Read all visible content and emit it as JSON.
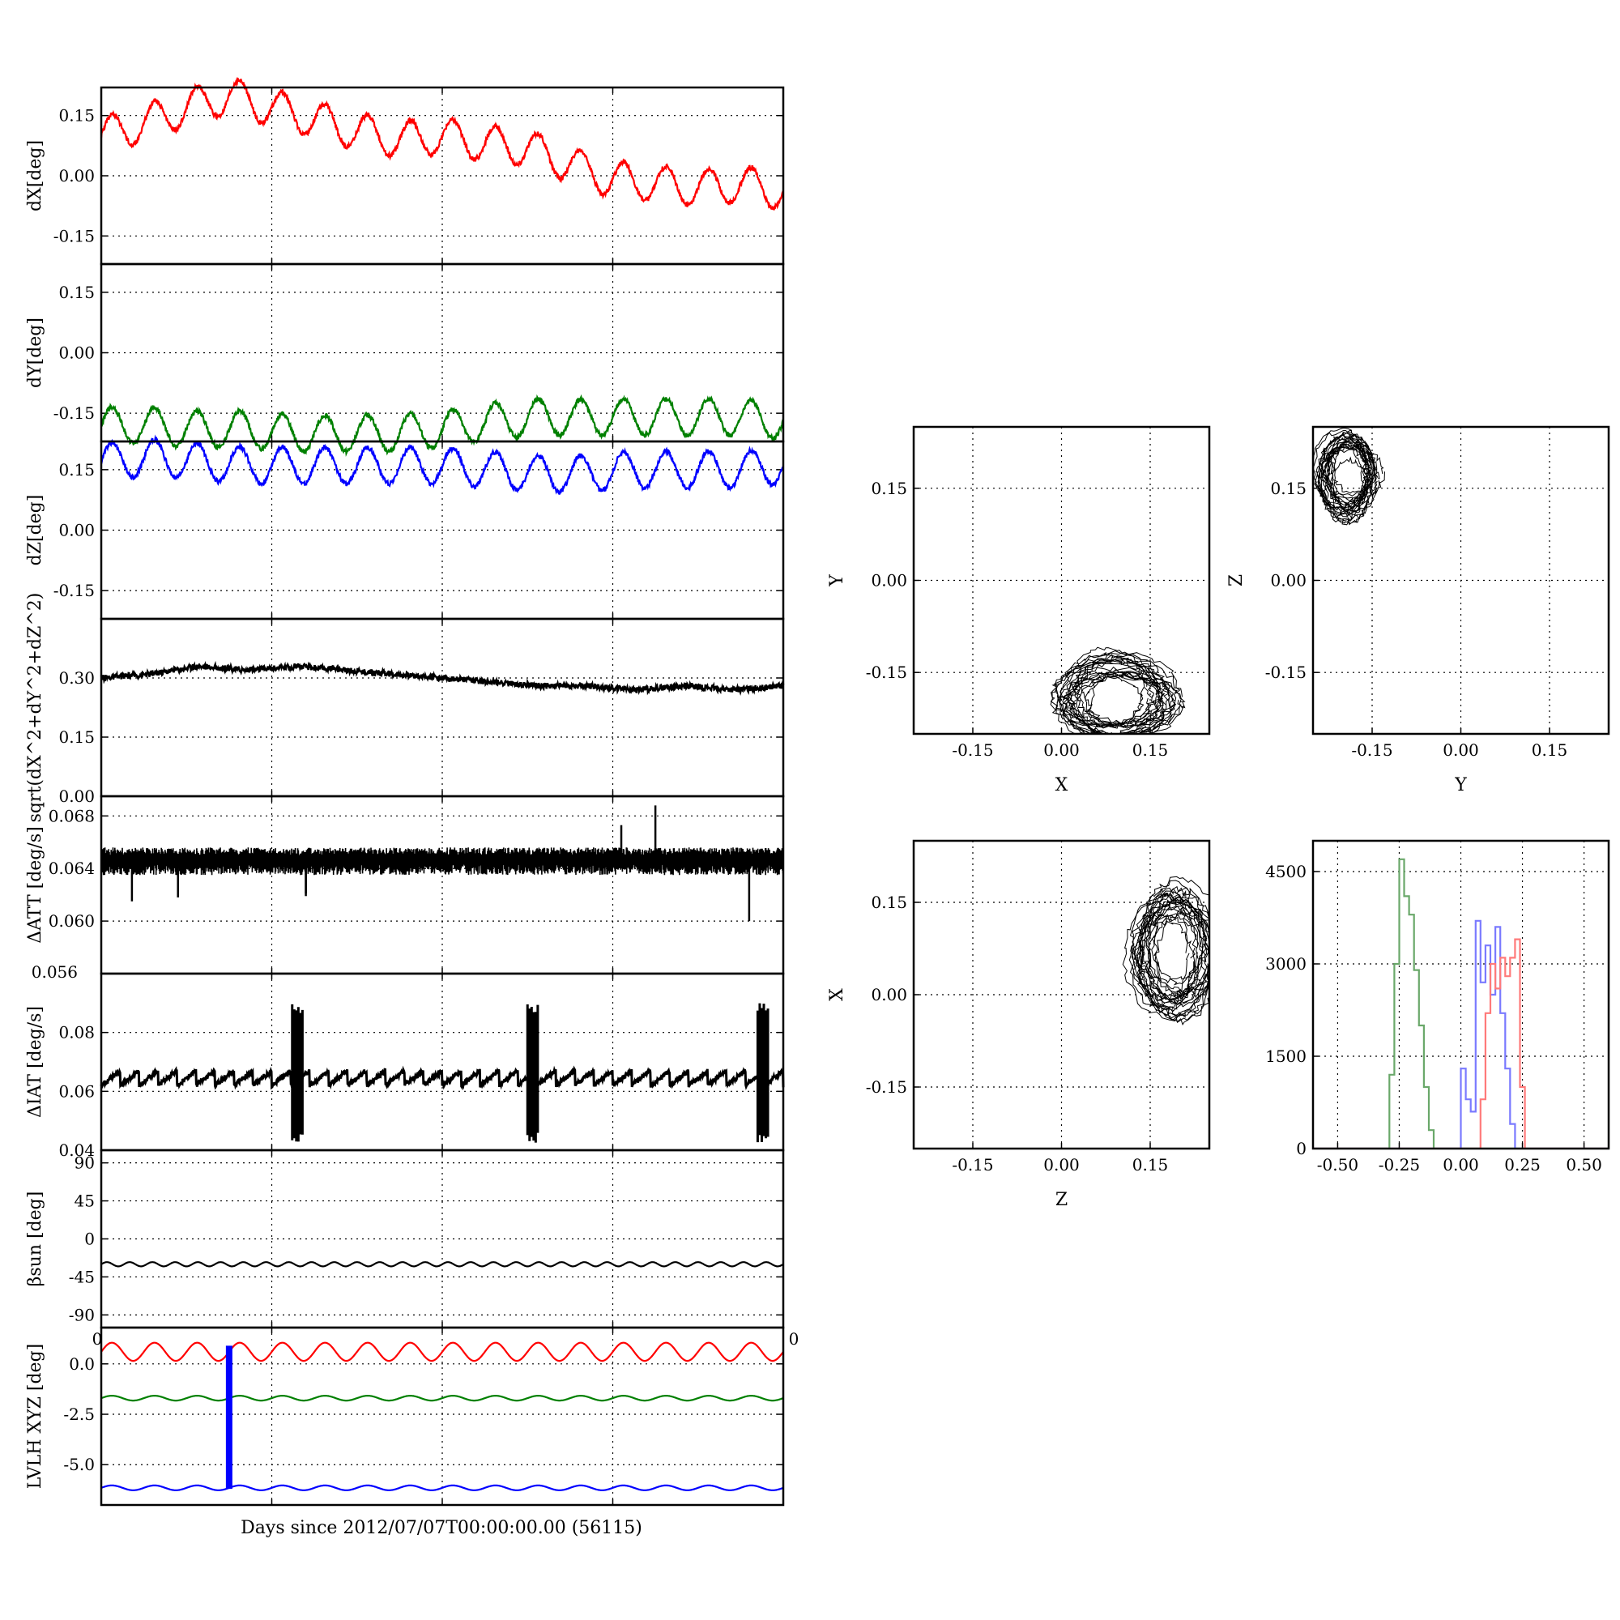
{
  "figure": {
    "xlabel": "Days since 2012/07/07T00:00:00.00 (56115)",
    "stray_tick_labels": {
      "left": "0",
      "right": "0",
      "overlap": "0.056"
    }
  },
  "chart_data": [
    {
      "id": "dx",
      "type": "line",
      "ylabel": "dX[deg]",
      "ylim": [
        -0.22,
        0.22
      ],
      "yticks": [
        "0.15",
        "0.00",
        "-0.15"
      ],
      "yticks_values": [
        0.15,
        0,
        -0.15
      ],
      "grid": true,
      "xlim": [
        0,
        4
      ],
      "series": [
        {
          "color": "#ff0000",
          "curve": "sine",
          "cycles": 16,
          "period_days": 0.25,
          "values_sampled": [
            0.1,
            0.13,
            0.17,
            0.2,
            0.17,
            0.14,
            0.11,
            0.09,
            0.1,
            0.08,
            0.07,
            0.03,
            -0.01,
            -0.02,
            -0.03,
            -0.02,
            -0.04
          ]
        }
      ]
    },
    {
      "id": "dy",
      "type": "line",
      "ylabel": "dY[deg]",
      "ylim": [
        -0.22,
        0.22
      ],
      "yticks": [
        "0.15",
        "0.00",
        "-0.15"
      ],
      "yticks_values": [
        0.15,
        0,
        -0.15
      ],
      "grid": true,
      "xlim": [
        0,
        4
      ],
      "series": [
        {
          "color": "#008000",
          "curve": "sine",
          "cycles": 16,
          "period_days": 0.25,
          "values_sampled": [
            -0.18,
            -0.18,
            -0.19,
            -0.19,
            -0.2,
            -0.2,
            -0.2,
            -0.19,
            -0.17,
            -0.16,
            -0.16,
            -0.16,
            -0.16,
            -0.16,
            -0.17
          ]
        }
      ]
    },
    {
      "id": "dz",
      "type": "line",
      "ylabel": "dZ[deg]",
      "ylim": [
        -0.22,
        0.22
      ],
      "yticks": [
        "0.15",
        "0.00",
        "-0.15"
      ],
      "yticks_values": [
        0.15,
        0,
        -0.15
      ],
      "grid": true,
      "xlim": [
        0,
        4
      ],
      "series": [
        {
          "color": "#0000ff",
          "curve": "sine",
          "cycles": 16,
          "period_days": 0.25,
          "values_sampled": [
            0.17,
            0.18,
            0.17,
            0.16,
            0.16,
            0.16,
            0.16,
            0.16,
            0.15,
            0.14,
            0.14,
            0.15,
            0.15,
            0.15,
            0.16
          ]
        }
      ]
    },
    {
      "id": "mag",
      "type": "line",
      "ylabel": "sqrt(dX^2+dY^2+dZ^2)",
      "ylim": [
        0,
        0.45
      ],
      "yticks": [
        "0.30",
        "0.15",
        "0.00"
      ],
      "yticks_values": [
        0.3,
        0.15,
        0
      ],
      "grid": true,
      "xlim": [
        0,
        4
      ],
      "series": [
        {
          "color": "#000000",
          "curve": "noise",
          "values_sampled": [
            0.3,
            0.31,
            0.33,
            0.32,
            0.33,
            0.32,
            0.31,
            0.3,
            0.29,
            0.28,
            0.28,
            0.27,
            0.28,
            0.27,
            0.28
          ]
        }
      ]
    },
    {
      "id": "att",
      "type": "line",
      "ylabel": "ΔATT [deg/s]",
      "ylim": [
        0.056,
        0.0695
      ],
      "yticks": [
        "0.068",
        "0.064",
        "0.060"
      ],
      "yticks_values": [
        0.068,
        0.064,
        0.06
      ],
      "grid": true,
      "xlim": [
        0,
        4
      ],
      "series": [
        {
          "color": "#000000",
          "curve": "band",
          "center": 0.0645,
          "band": [
            0.0635,
            0.0656
          ],
          "spikes": [
            [
              0.18,
              0.0615
            ],
            [
              0.45,
              0.0618
            ],
            [
              1.2,
              0.0619
            ],
            [
              1.2,
              0.0621
            ],
            [
              3.05,
              0.0673
            ],
            [
              3.25,
              0.0688
            ],
            [
              3.8,
              0.06
            ]
          ]
        }
      ]
    },
    {
      "id": "iat",
      "type": "line",
      "ylabel": "ΔIAT [deg/s]",
      "ylim": [
        0.04,
        0.1
      ],
      "yticks": [
        "0.08",
        "0.06",
        "0.04"
      ],
      "yticks_values": [
        0.08,
        0.06,
        0.04
      ],
      "grid": true,
      "xlim": [
        0,
        4
      ],
      "series": [
        {
          "color": "#000000",
          "curve": "sawtooth",
          "center": 0.064,
          "bursts_days": [
            1.12,
            2.5,
            3.85
          ],
          "burst_range": [
            0.042,
            0.09
          ]
        }
      ]
    },
    {
      "id": "beta",
      "type": "line",
      "ylabel": "βsun [deg]",
      "ylim": [
        -105,
        105
      ],
      "yticks": [
        "90",
        "45",
        "0",
        "-45",
        "-90"
      ],
      "yticks_values": [
        90,
        45,
        0,
        -45,
        -90
      ],
      "grid": true,
      "xlim": [
        0,
        4
      ],
      "series": [
        {
          "color": "#000000",
          "curve": "sine",
          "center": -30,
          "amp": 2.5,
          "cycles": 30
        }
      ]
    },
    {
      "id": "lvlh",
      "type": "line",
      "ylabel": "LVLH XYZ [deg]",
      "ylim": [
        -7,
        1.8
      ],
      "yticks": [
        "0.0",
        "-2.5",
        "-5.0"
      ],
      "yticks_values": [
        0,
        -2.5,
        -5
      ],
      "grid": true,
      "xlim": [
        0,
        4
      ],
      "series": [
        {
          "color": "#ff0000",
          "curve": "sine",
          "center": 0.6,
          "amp": 0.45,
          "cycles": 16
        },
        {
          "color": "#008000",
          "curve": "sine",
          "center": -1.7,
          "amp": 0.12,
          "cycles": 16
        },
        {
          "color": "#0000ff",
          "curve": "sine",
          "center": -6.15,
          "amp": 0.12,
          "cycles": 16
        }
      ],
      "vline": {
        "x": 0.75,
        "from": -6.2,
        "to": 0.9,
        "color": "#0000ff"
      }
    },
    {
      "id": "xy",
      "type": "scatter",
      "xlabel": "X",
      "ylabel": "Y",
      "xlim": [
        -0.25,
        0.25
      ],
      "ylim": [
        -0.25,
        0.25
      ],
      "xticks": [
        "-0.15",
        "0.00",
        "0.15"
      ],
      "yticks": [
        "0.15",
        "0.00",
        "-0.15"
      ],
      "grid": true,
      "cluster": {
        "cx": 0.09,
        "cy": -0.19,
        "rx": 0.09,
        "ry": 0.07
      }
    },
    {
      "id": "yz",
      "type": "scatter",
      "xlabel": "Y",
      "ylabel": "Z",
      "xlim": [
        -0.25,
        0.25
      ],
      "ylim": [
        -0.25,
        0.25
      ],
      "xticks": [
        "-0.15",
        "0.00",
        "0.15"
      ],
      "yticks": [
        "0.15",
        "0.00",
        "-0.15"
      ],
      "grid": true,
      "cluster": {
        "cx": -0.19,
        "cy": 0.17,
        "rx": 0.05,
        "ry": 0.07
      }
    },
    {
      "id": "zx",
      "type": "scatter",
      "xlabel": "Z",
      "ylabel": "X",
      "xlim": [
        -0.25,
        0.25
      ],
      "ylim": [
        -0.25,
        0.25
      ],
      "xticks": [
        "-0.15",
        "0.00",
        "0.15"
      ],
      "yticks": [
        "0.15",
        "0.00",
        "-0.15"
      ],
      "grid": true,
      "cluster": {
        "cx": 0.19,
        "cy": 0.07,
        "rx": 0.07,
        "ry": 0.1
      }
    },
    {
      "id": "hist",
      "type": "line",
      "xlim": [
        -0.6,
        0.6
      ],
      "ylim": [
        0,
        5000
      ],
      "xticks": [
        "-0.50",
        "-0.25",
        "0.00",
        "0.25",
        "0.50"
      ],
      "xticks_values": [
        -0.5,
        -0.25,
        0,
        0.25,
        0.5
      ],
      "yticks": [
        "4500",
        "3000",
        "1500",
        "0"
      ],
      "yticks_values": [
        4500,
        3000,
        1500,
        0
      ],
      "grid": true,
      "series": [
        {
          "color": "#6aa86a",
          "name": "",
          "x": [
            -0.31,
            -0.29,
            -0.27,
            -0.25,
            -0.23,
            -0.21,
            -0.19,
            -0.17,
            -0.15,
            -0.13,
            -0.11
          ],
          "values": [
            0,
            1200,
            3000,
            4700,
            4100,
            3800,
            2900,
            2000,
            1000,
            300,
            0
          ]
        },
        {
          "color": "#7a7aff",
          "name": "",
          "x": [
            -0.02,
            0.0,
            0.02,
            0.04,
            0.06,
            0.08,
            0.1,
            0.12,
            0.14,
            0.16,
            0.18,
            0.2,
            0.22
          ],
          "values": [
            0,
            1300,
            800,
            600,
            3700,
            2700,
            3300,
            2500,
            3600,
            2200,
            1300,
            400,
            0
          ]
        },
        {
          "color": "#ff7a7a",
          "name": "",
          "x": [
            0.06,
            0.08,
            0.1,
            0.12,
            0.14,
            0.16,
            0.18,
            0.2,
            0.22,
            0.24,
            0.26
          ],
          "values": [
            0,
            800,
            2200,
            3000,
            2600,
            3100,
            2800,
            3100,
            3400,
            1000,
            0
          ]
        }
      ]
    }
  ]
}
